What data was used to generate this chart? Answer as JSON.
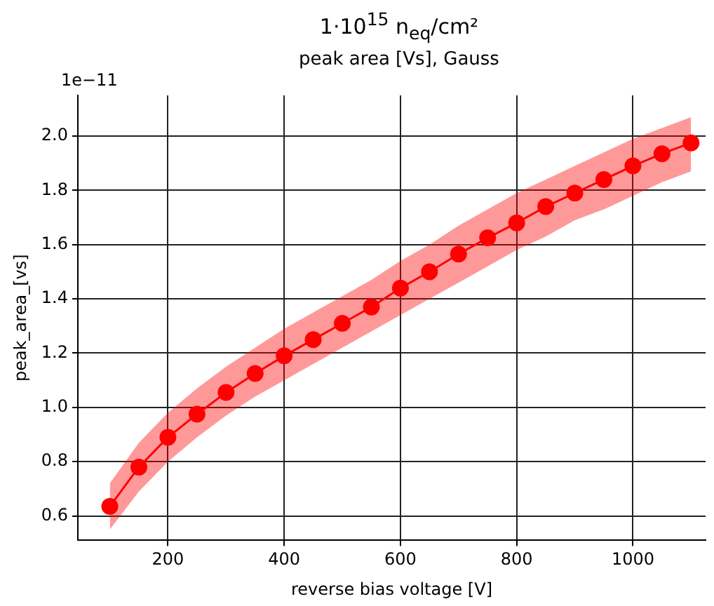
{
  "chart_data": {
    "type": "line",
    "title": "1·10$^{15}$ n$_{eq}$/cm²",
    "subtitle": "peak area [Vs], Gauss",
    "xlabel": "reverse bias voltage [V]",
    "ylabel": "peak_area_[vs]",
    "annotations": [
      "1e−11"
    ],
    "x": [
      100,
      150,
      200,
      250,
      300,
      350,
      400,
      450,
      500,
      550,
      600,
      650,
      700,
      750,
      800,
      850,
      900,
      950,
      1000,
      1050,
      1100
    ],
    "series": [
      {
        "color": "#ff0000",
        "values": [
          0.635,
          0.78,
          0.89,
          0.975,
          1.055,
          1.125,
          1.19,
          1.25,
          1.31,
          1.37,
          1.44,
          1.5,
          1.565,
          1.625,
          1.68,
          1.74,
          1.79,
          1.84,
          1.89,
          1.935,
          1.975
        ],
        "lower": [
          0.55,
          0.69,
          0.8,
          0.89,
          0.97,
          1.04,
          1.1,
          1.16,
          1.22,
          1.28,
          1.34,
          1.4,
          1.46,
          1.52,
          1.58,
          1.63,
          1.69,
          1.73,
          1.78,
          1.83,
          1.87
        ],
        "upper": [
          0.72,
          0.87,
          0.98,
          1.07,
          1.15,
          1.22,
          1.29,
          1.35,
          1.41,
          1.47,
          1.54,
          1.6,
          1.67,
          1.73,
          1.79,
          1.84,
          1.89,
          1.94,
          1.99,
          2.03,
          2.07
        ]
      }
    ],
    "xlim": [
      45,
      1125
    ],
    "xticks": [
      200,
      400,
      600,
      800,
      1000
    ],
    "ylim": [
      0.51,
      2.15
    ],
    "yticks": [
      {
        "value": 0.6,
        "label": "0.6"
      },
      {
        "value": 0.8,
        "label": "0.8"
      },
      {
        "value": 1.0,
        "label": "1.0"
      },
      {
        "value": 1.2,
        "label": "1.2"
      },
      {
        "value": 1.4,
        "label": "1.4"
      },
      {
        "value": 1.6,
        "label": "1.6"
      },
      {
        "value": 1.8,
        "label": "1.8"
      },
      {
        "value": 2.0,
        "label": "2.0"
      }
    ],
    "grid": true,
    "legend": false,
    "marker": "circle",
    "line_style": "solid"
  }
}
